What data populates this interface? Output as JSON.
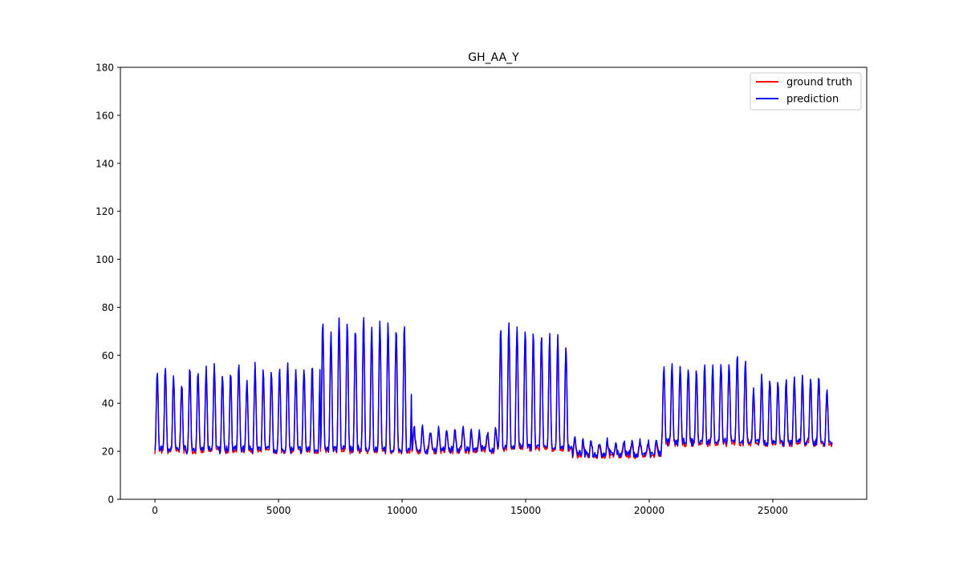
{
  "chart_data": {
    "type": "line",
    "title": "GH_AA_Y",
    "xlabel": "",
    "ylabel": "",
    "xlim": [
      -1400,
      28800
    ],
    "ylim": [
      0,
      180
    ],
    "x_ticks": [
      0,
      5000,
      10000,
      15000,
      20000,
      25000
    ],
    "y_ticks": [
      0,
      20,
      40,
      60,
      80,
      100,
      120,
      140,
      160,
      180
    ],
    "grid": false,
    "legend": {
      "position": "top-right",
      "entries": [
        "ground truth",
        "prediction"
      ]
    },
    "series": [
      {
        "name": "ground truth",
        "color": "#ff0000"
      },
      {
        "name": "prediction",
        "color": "#0000ff"
      }
    ],
    "x_max": 27400,
    "segments": [
      {
        "x_start": 0,
        "x_end": 6700,
        "period": 330,
        "peak_amplitude": [
          52,
          55,
          51,
          48,
          54,
          53,
          53,
          56,
          52,
          52,
          55,
          48,
          55,
          53,
          53,
          53,
          56,
          52,
          54,
          55
        ],
        "baseline": 20
      },
      {
        "x_start": 6700,
        "x_end": 10400,
        "period": 330,
        "peak_amplitude": [
          73,
          68,
          76,
          74,
          71,
          76,
          72,
          73,
          72,
          72,
          72,
          72
        ],
        "baseline": 20
      },
      {
        "x_start": 10400,
        "x_end": 13900,
        "period": 330,
        "peak_amplitude": [
          29,
          29,
          28,
          29,
          28,
          28,
          29,
          28,
          27,
          27,
          28
        ],
        "baseline": 20
      },
      {
        "x_start": 13900,
        "x_end": 16900,
        "period": 330,
        "peak_amplitude": [
          71,
          74,
          72,
          70,
          69,
          68,
          67,
          67,
          63
        ],
        "baseline": 21
      },
      {
        "x_start": 16900,
        "x_end": 20500,
        "period": 330,
        "peak_amplitude": [
          25,
          23,
          24,
          23,
          24,
          23,
          24,
          23,
          24,
          23,
          24
        ],
        "baseline": 18
      },
      {
        "x_start": 20500,
        "x_end": 27400,
        "period": 330,
        "peak_amplitude": [
          55,
          55,
          55,
          54,
          53,
          55,
          55,
          56,
          56,
          60,
          58,
          45,
          50,
          50,
          49,
          49,
          50,
          50,
          50,
          51,
          45
        ],
        "baseline": 23
      }
    ]
  }
}
